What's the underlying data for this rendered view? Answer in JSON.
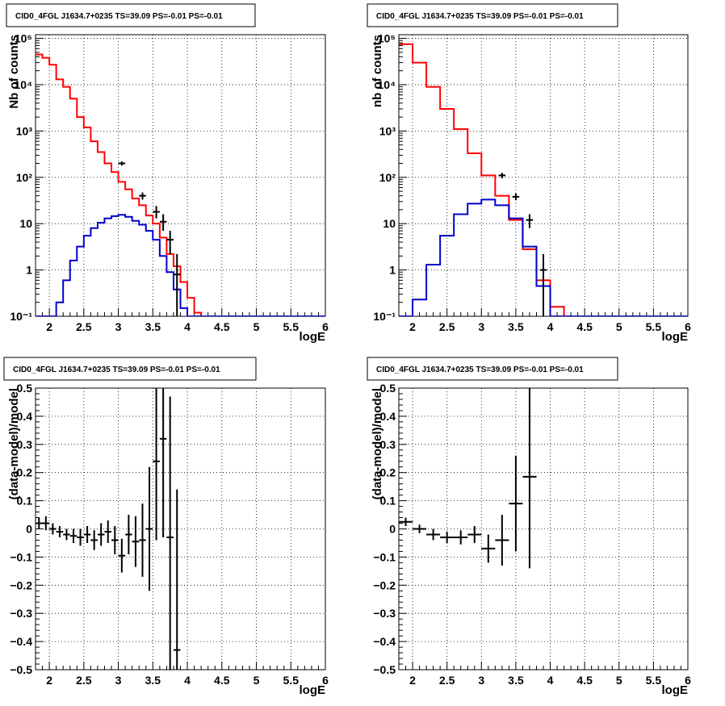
{
  "colors": {
    "data": "#000000",
    "model": "#ff0000",
    "source": "#0000cc",
    "grid": "#000000"
  },
  "chart_data": [
    {
      "type": "line",
      "title": "CID0_4FGL J1634.7+0235 TS=39.09 PS=-0.01 PS=-0.01",
      "xlabel": "logE",
      "ylabel": "Nb of counts",
      "xlim": [
        1.8,
        6.0
      ],
      "ylim": [
        0.1,
        120000
      ],
      "yscale": "log",
      "grid": true,
      "xticks": [
        2,
        2.5,
        3,
        3.5,
        4,
        4.5,
        5,
        5.5,
        6
      ],
      "xtick_labels": [
        "2",
        "2.5",
        "3",
        "3.5",
        "4",
        "4.5",
        "5",
        "5.5",
        "6"
      ],
      "yticks": [
        0.1,
        1,
        10,
        100,
        1000,
        10000,
        100000
      ],
      "ytick_labels": [
        "10⁻¹",
        "1",
        "10",
        "10²",
        "10³",
        "10⁴",
        "10⁵"
      ],
      "bin_edges": [
        1.8,
        1.9,
        2.0,
        2.1,
        2.2,
        2.3,
        2.4,
        2.5,
        2.6,
        2.7,
        2.8,
        2.9,
        3.0,
        3.1,
        3.2,
        3.3,
        3.4,
        3.5,
        3.6,
        3.7,
        3.8,
        3.9,
        4.0,
        4.1,
        4.2,
        4.3,
        4.4,
        4.5,
        4.6,
        4.7,
        4.8,
        4.9,
        5.0,
        5.1,
        5.2,
        5.3,
        5.4,
        5.5,
        5.6,
        5.7,
        5.8,
        5.9,
        6.0
      ],
      "series": [
        {
          "name": "",
          "role": "model",
          "style": "step",
          "values": [
            45000,
            38000,
            27000,
            13000,
            9000,
            5000,
            2000,
            1200,
            600,
            350,
            200,
            130,
            80,
            55,
            35,
            25,
            15,
            10,
            5,
            2.2,
            1.2,
            0.55,
            0.25,
            0.12,
            0.1,
            0.1,
            0.1,
            0.1,
            0.1,
            0.1,
            0.1,
            0.1,
            0.1,
            0.1,
            0.1,
            0.1,
            0.1,
            0.1,
            0.1,
            0.1,
            0.1,
            0.1
          ]
        },
        {
          "name": "",
          "role": "source",
          "style": "step",
          "values": [
            0.1,
            0.1,
            0.1,
            0.2,
            0.6,
            1.6,
            3.2,
            5.5,
            8.0,
            10.5,
            13.0,
            14.5,
            15.5,
            14.0,
            11.5,
            9.5,
            7.0,
            4.5,
            2.0,
            0.9,
            0.38,
            0.15,
            0.1,
            0.1,
            0.1,
            0.1,
            0.1,
            0.1,
            0.1,
            0.1,
            0.1,
            0.1,
            0.1,
            0.1,
            0.1,
            0.1,
            0.1,
            0.1,
            0.1,
            0.1,
            0.1,
            0.1
          ]
        },
        {
          "name": "",
          "role": "data",
          "style": "errorbar",
          "points": [
            {
              "x": 3.05,
              "y": 200,
              "lo": 180,
              "hi": 220
            },
            {
              "x": 3.35,
              "y": 40,
              "lo": 33,
              "hi": 47
            },
            {
              "x": 3.55,
              "y": 18,
              "lo": 13,
              "hi": 24
            },
            {
              "x": 3.65,
              "y": 11,
              "lo": 7,
              "hi": 16
            },
            {
              "x": 3.75,
              "y": 4.5,
              "lo": 2.2,
              "hi": 7
            },
            {
              "x": 3.85,
              "y": 0.8,
              "lo": 0.1,
              "hi": 2.2
            }
          ]
        }
      ]
    },
    {
      "type": "line",
      "title": "CID0_4FGL J1634.7+0235 TS=39.09 PS=-0.01 PS=-0.01",
      "xlabel": "logE",
      "ylabel": "nb of counts",
      "xlim": [
        1.8,
        6.0
      ],
      "ylim": [
        0.1,
        120000
      ],
      "yscale": "log",
      "grid": true,
      "xticks": [
        2,
        2.5,
        3,
        3.5,
        4,
        4.5,
        5,
        5.5,
        6
      ],
      "xtick_labels": [
        "2",
        "2.5",
        "3",
        "3.5",
        "4",
        "4.5",
        "5",
        "5.5",
        "6"
      ],
      "yticks": [
        0.1,
        1,
        10,
        100,
        1000,
        10000,
        100000
      ],
      "ytick_labels": [
        "10⁻¹",
        "1",
        "10",
        "10²",
        "10³",
        "10⁴",
        "10⁵"
      ],
      "bin_edges": [
        1.8,
        2.0,
        2.2,
        2.4,
        2.6,
        2.8,
        3.0,
        3.2,
        3.4,
        3.6,
        3.8,
        4.0,
        4.2,
        4.4,
        4.6,
        4.8,
        5.0,
        5.2,
        5.4,
        5.6,
        5.8,
        6.0
      ],
      "series": [
        {
          "name": "",
          "role": "model",
          "style": "step",
          "values": [
            75000,
            30000,
            9000,
            3000,
            1100,
            330,
            110,
            40,
            12,
            2.8,
            0.6,
            0.16,
            0.1,
            0.1,
            0.1,
            0.1,
            0.1,
            0.1,
            0.1,
            0.1,
            0.1
          ]
        },
        {
          "name": "",
          "role": "source",
          "style": "step",
          "values": [
            0.1,
            0.23,
            1.3,
            5.5,
            16,
            27,
            33,
            25,
            13,
            3.2,
            0.45,
            0.1,
            0.1,
            0.1,
            0.1,
            0.1,
            0.1,
            0.1,
            0.1,
            0.1,
            0.1
          ]
        },
        {
          "name": "",
          "role": "data",
          "style": "errorbar",
          "points": [
            {
              "x": 3.3,
              "y": 110,
              "lo": 95,
              "hi": 125
            },
            {
              "x": 3.5,
              "y": 38,
              "lo": 32,
              "hi": 45
            },
            {
              "x": 3.7,
              "y": 12,
              "lo": 8,
              "hi": 16
            },
            {
              "x": 3.9,
              "y": 1.0,
              "lo": 0.1,
              "hi": 2.2
            }
          ]
        }
      ]
    },
    {
      "type": "scatter",
      "title": "CID0_4FGL J1634.7+0235 TS=39.09 PS=-0.01 PS=-0.01",
      "xlabel": "logE",
      "ylabel": "(data-model)/model",
      "xlim": [
        1.8,
        6.0
      ],
      "ylim": [
        -0.5,
        0.5
      ],
      "grid": true,
      "xticks": [
        2,
        2.5,
        3,
        3.5,
        4,
        4.5,
        5,
        5.5,
        6
      ],
      "xtick_labels": [
        "2",
        "2.5",
        "3",
        "3.5",
        "4",
        "4.5",
        "5",
        "5.5",
        "6"
      ],
      "yticks": [
        -0.5,
        -0.4,
        -0.3,
        -0.2,
        -0.1,
        0,
        0.1,
        0.2,
        0.3,
        0.4,
        0.5
      ],
      "ytick_labels": [
        "−0.5",
        "−0.4",
        "−0.3",
        "−0.2",
        "−0.1",
        "0",
        "0.1",
        "0.2",
        "0.3",
        "0.4",
        "0.5"
      ],
      "series": [
        {
          "name": "",
          "role": "data",
          "style": "errorbar",
          "points": [
            {
              "x": 1.85,
              "y": 0.02,
              "err": 0.02,
              "xerr": 0.05
            },
            {
              "x": 1.95,
              "y": 0.02,
              "err": 0.025,
              "xerr": 0.05
            },
            {
              "x": 2.05,
              "y": 0.0,
              "err": 0.02,
              "xerr": 0.05
            },
            {
              "x": 2.15,
              "y": -0.01,
              "err": 0.02,
              "xerr": 0.05
            },
            {
              "x": 2.25,
              "y": -0.02,
              "err": 0.02,
              "xerr": 0.05
            },
            {
              "x": 2.35,
              "y": -0.025,
              "err": 0.025,
              "xerr": 0.05
            },
            {
              "x": 2.45,
              "y": -0.03,
              "err": 0.03,
              "xerr": 0.05
            },
            {
              "x": 2.55,
              "y": -0.02,
              "err": 0.03,
              "xerr": 0.05
            },
            {
              "x": 2.65,
              "y": -0.04,
              "err": 0.035,
              "xerr": 0.05
            },
            {
              "x": 2.75,
              "y": -0.02,
              "err": 0.04,
              "xerr": 0.05
            },
            {
              "x": 2.85,
              "y": -0.01,
              "err": 0.04,
              "xerr": 0.05
            },
            {
              "x": 2.95,
              "y": -0.04,
              "err": 0.05,
              "xerr": 0.05
            },
            {
              "x": 3.05,
              "y": -0.095,
              "err": 0.06,
              "xerr": 0.05
            },
            {
              "x": 3.15,
              "y": -0.02,
              "err": 0.07,
              "xerr": 0.05
            },
            {
              "x": 3.25,
              "y": -0.045,
              "err": 0.09,
              "xerr": 0.05
            },
            {
              "x": 3.35,
              "y": -0.04,
              "err": 0.13,
              "xerr": 0.05
            },
            {
              "x": 3.45,
              "y": 0.0,
              "err": 0.22,
              "xerr": 0.05
            },
            {
              "x": 3.55,
              "y": 0.24,
              "err": 0.28,
              "xerr": 0.05
            },
            {
              "x": 3.65,
              "y": 0.32,
              "err": 0.35,
              "xerr": 0.05
            },
            {
              "x": 3.75,
              "y": -0.03,
              "err": 0.5,
              "xerr": 0.05
            },
            {
              "x": 3.85,
              "y": -0.43,
              "err": 0.57,
              "xerr": 0.05
            }
          ]
        }
      ]
    },
    {
      "type": "scatter",
      "title": "CID0_4FGL J1634.7+0235 TS=39.09 PS=-0.01 PS=-0.01",
      "xlabel": "logE",
      "ylabel": "(data-model)/model",
      "xlim": [
        1.8,
        6.0
      ],
      "ylim": [
        -0.5,
        0.5
      ],
      "grid": true,
      "xticks": [
        2,
        2.5,
        3,
        3.5,
        4,
        4.5,
        5,
        5.5,
        6
      ],
      "xtick_labels": [
        "2",
        "2.5",
        "3",
        "3.5",
        "4",
        "4.5",
        "5",
        "5.5",
        "6"
      ],
      "yticks": [
        -0.5,
        -0.4,
        -0.3,
        -0.2,
        -0.1,
        0,
        0.1,
        0.2,
        0.3,
        0.4,
        0.5
      ],
      "ytick_labels": [
        "−0.5",
        "−0.4",
        "−0.3",
        "−0.2",
        "−0.1",
        "0",
        "0.1",
        "0.2",
        "0.3",
        "0.4",
        "0.5"
      ],
      "series": [
        {
          "name": "",
          "role": "data",
          "style": "errorbar",
          "points": [
            {
              "x": 1.9,
              "y": 0.025,
              "err": 0.015,
              "xerr": 0.1
            },
            {
              "x": 2.1,
              "y": 0.0,
              "err": 0.015,
              "xerr": 0.1
            },
            {
              "x": 2.3,
              "y": -0.02,
              "err": 0.02,
              "xerr": 0.1
            },
            {
              "x": 2.5,
              "y": -0.03,
              "err": 0.02,
              "xerr": 0.1
            },
            {
              "x": 2.7,
              "y": -0.03,
              "err": 0.025,
              "xerr": 0.1
            },
            {
              "x": 2.9,
              "y": -0.02,
              "err": 0.03,
              "xerr": 0.1
            },
            {
              "x": 3.1,
              "y": -0.07,
              "err": 0.05,
              "xerr": 0.1
            },
            {
              "x": 3.3,
              "y": -0.04,
              "err": 0.09,
              "xerr": 0.1
            },
            {
              "x": 3.5,
              "y": 0.09,
              "err": 0.17,
              "xerr": 0.1
            },
            {
              "x": 3.7,
              "y": 0.185,
              "err": 0.325,
              "xerr": 0.1
            }
          ]
        }
      ]
    }
  ]
}
